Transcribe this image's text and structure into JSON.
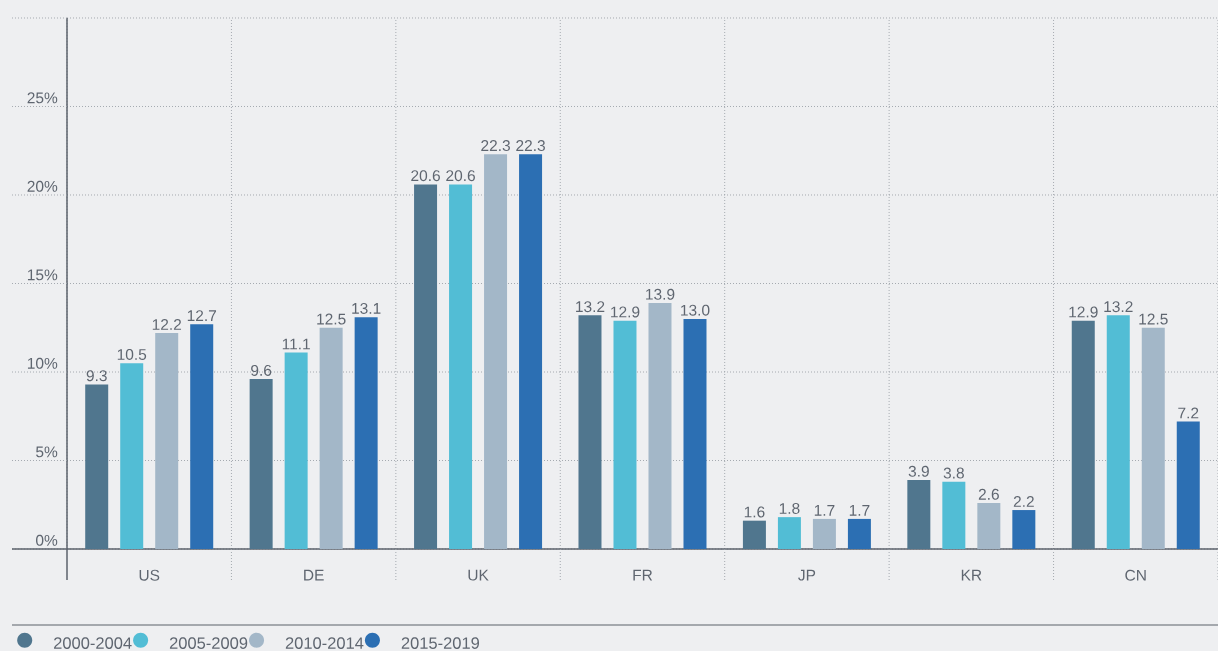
{
  "chart_data": {
    "type": "bar",
    "categories": [
      "US",
      "DE",
      "UK",
      "FR",
      "JP",
      "KR",
      "CN"
    ],
    "series": [
      {
        "name": "2000-2004",
        "color": "#50768e",
        "values": [
          9.3,
          9.6,
          20.6,
          13.2,
          1.6,
          3.9,
          12.9
        ],
        "value_labels": [
          "9.3",
          "9.6",
          "20.6",
          "13.2",
          "1.6",
          "3.9",
          "12.9"
        ]
      },
      {
        "name": "2005-2009",
        "color": "#52bdd5",
        "values": [
          10.5,
          11.1,
          20.6,
          12.9,
          1.8,
          3.8,
          13.2
        ],
        "value_labels": [
          "10.5",
          "11.1",
          "20.6",
          "12.9",
          "1.8",
          "3.8",
          "13.2"
        ]
      },
      {
        "name": "2010-2014",
        "color": "#a3b7c8",
        "values": [
          12.2,
          12.5,
          22.3,
          13.9,
          1.7,
          2.6,
          12.5
        ],
        "value_labels": [
          "12.2",
          "12.5",
          "22.3",
          "13.9",
          "1.7",
          "2.6",
          "12.5"
        ]
      },
      {
        "name": "2015-2019",
        "color": "#2c6fb3",
        "values": [
          12.7,
          13.1,
          22.3,
          13.0,
          1.7,
          2.2,
          7.2
        ],
        "value_labels": [
          "12.7",
          "13.1",
          "22.3",
          "13.0",
          "1.7",
          "2.2",
          "7.2"
        ]
      }
    ],
    "ylim": [
      0,
      30
    ],
    "yticks": [
      {
        "value": 0,
        "label": "0%"
      },
      {
        "value": 5,
        "label": "5%"
      },
      {
        "value": 10,
        "label": "10%"
      },
      {
        "value": 15,
        "label": "15%"
      },
      {
        "value": 20,
        "label": "20%"
      },
      {
        "value": 25,
        "label": "25%"
      },
      {
        "value": 30,
        "label": null
      }
    ],
    "grid": true,
    "legend": "bottom left"
  }
}
